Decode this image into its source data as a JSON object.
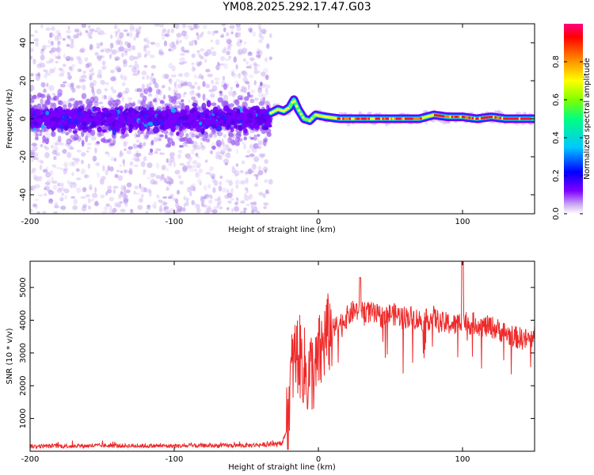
{
  "title": "YM08.2025.292.17.47.G03",
  "chart_data": [
    {
      "type": "heatmap",
      "name": "spectrogram",
      "xlabel": "Height of straight line (km)",
      "ylabel": "Frequency (Hz)",
      "xlim": [
        -200,
        150
      ],
      "ylim": [
        -50,
        50
      ],
      "xticks": [
        -200,
        -100,
        0,
        100
      ],
      "yticks": [
        -40,
        -20,
        0,
        20,
        40
      ],
      "colorbar": {
        "label": "Normalized spectral amplitude",
        "range": [
          0,
          1
        ],
        "ticks": [
          "0.0",
          "0.2",
          "0.4",
          "0.6",
          "0.8"
        ],
        "colors": [
          "#ffffff",
          "#c9a6f2",
          "#8000ff",
          "#0000ff",
          "#00c8ff",
          "#00ff80",
          "#80ff00",
          "#ffff00",
          "#ff8000",
          "#ff0000",
          "#ff0080"
        ]
      },
      "trace": {
        "description": "dominant frequency ridge",
        "x": [
          -33,
          -28,
          -24,
          -20,
          -17,
          -14,
          -10,
          -6,
          -2,
          5,
          15,
          30,
          50,
          70,
          80,
          90,
          100,
          110,
          120,
          130,
          140,
          150
        ],
        "y": [
          3,
          5,
          4,
          6,
          10,
          5,
          0,
          -1,
          2,
          1,
          0,
          0,
          0,
          0,
          2,
          1,
          1,
          0,
          1,
          0,
          0,
          0
        ]
      },
      "scatter_region": {
        "x": [
          -200,
          -33
        ],
        "y_spread": 50,
        "core_y": [
          -8,
          8
        ]
      }
    },
    {
      "type": "line",
      "name": "snr",
      "xlabel": "Height of straight line (km)",
      "ylabel": "SNR (10 * v/v)",
      "xlim": [
        -200,
        150
      ],
      "ylim": [
        0,
        5800
      ],
      "xticks": [
        -200,
        -100,
        0,
        100
      ],
      "yticks": [
        1000,
        2000,
        3000,
        4000,
        5000
      ],
      "color": "#ee2a2a",
      "series": {
        "x": [
          -200,
          -150,
          -100,
          -50,
          -25,
          -22,
          -20,
          -18,
          -15,
          -12,
          -10,
          -8,
          -5,
          -2,
          0,
          2,
          5,
          10,
          15,
          20,
          25,
          30,
          35,
          40,
          45,
          50,
          55,
          60,
          65,
          70,
          75,
          80,
          85,
          90,
          95,
          100,
          105,
          110,
          115,
          120,
          125,
          130,
          135,
          140,
          145,
          150
        ],
        "y": [
          150,
          170,
          160,
          180,
          220,
          700,
          1800,
          2600,
          3000,
          2800,
          2600,
          2200,
          2500,
          2300,
          2900,
          3000,
          3500,
          3700,
          3900,
          4100,
          4300,
          4300,
          4250,
          4150,
          4100,
          4200,
          4150,
          4100,
          4100,
          4000,
          4000,
          4100,
          3900,
          3900,
          3850,
          4000,
          3900,
          3900,
          3800,
          3800,
          3700,
          3600,
          3500,
          3450,
          3400,
          3500
        ]
      },
      "peaks": [
        {
          "x": 29,
          "y": 5300
        },
        {
          "x": 100,
          "y": 5800
        }
      ]
    }
  ]
}
